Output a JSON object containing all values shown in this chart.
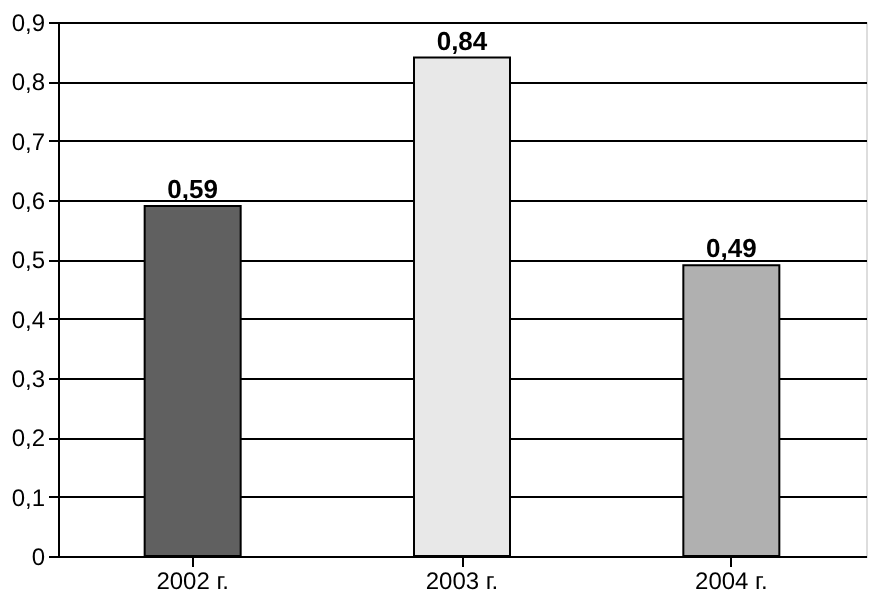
{
  "chart_data": {
    "type": "bar",
    "categories": [
      "2002 г.",
      "2003 г.",
      "2004 г."
    ],
    "values": [
      0.59,
      0.84,
      0.49
    ],
    "value_labels": [
      "0,59",
      "0,84",
      "0,49"
    ],
    "colors": [
      "#606060",
      "#e8e8e8",
      "#b0b0b0"
    ],
    "ylim": [
      0,
      0.9
    ],
    "yticks": [
      {
        "value": 0,
        "label": "0"
      },
      {
        "value": 0.1,
        "label": "0,1"
      },
      {
        "value": 0.2,
        "label": "0,2"
      },
      {
        "value": 0.3,
        "label": "0,3"
      },
      {
        "value": 0.4,
        "label": "0,4"
      },
      {
        "value": 0.5,
        "label": "0,5"
      },
      {
        "value": 0.6,
        "label": "0,6"
      },
      {
        "value": 0.7,
        "label": "0,7"
      },
      {
        "value": 0.8,
        "label": "0,8"
      },
      {
        "value": 0.9,
        "label": "0,9"
      }
    ],
    "grid": "y"
  }
}
